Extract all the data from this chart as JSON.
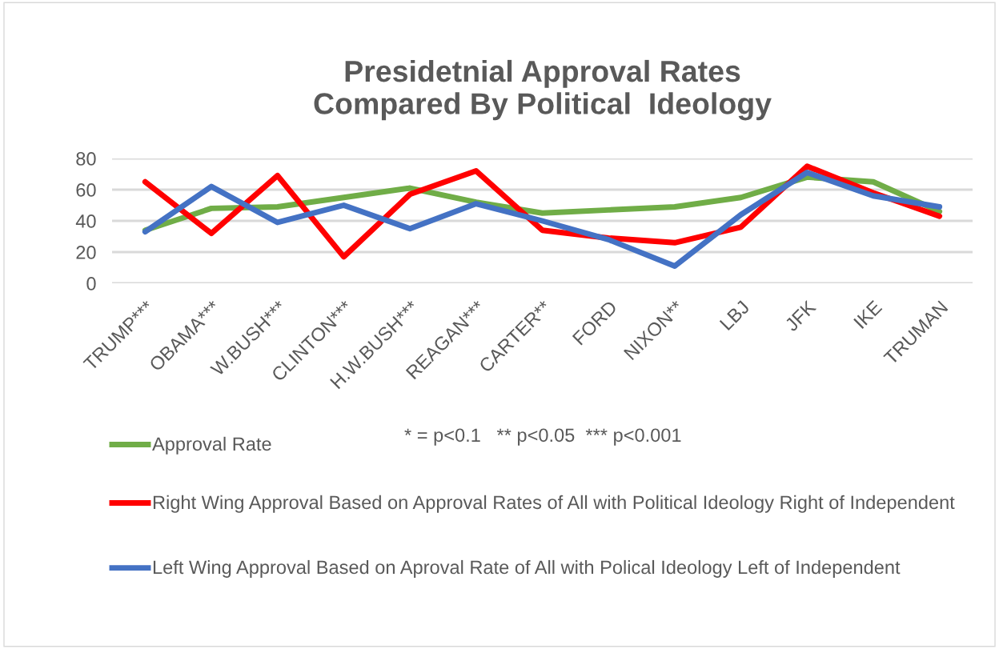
{
  "chart_data": {
    "type": "line",
    "title": "Presidetnial Approval Rates\nCompared By Political  Ideology",
    "categories": [
      "TRUMP***",
      "OBAMA***",
      "W.BUSH***",
      "CLINTON***",
      "H.W.BUSH***",
      "REAGAN***",
      "CARTER**",
      "FORD",
      "NIXON**",
      "LBJ",
      "JFK",
      "IKE",
      "TRUMAN"
    ],
    "series": [
      {
        "name": "Approval Rate",
        "color": "#70ad47",
        "values": [
          34,
          48,
          49,
          55,
          61,
          52,
          45,
          47,
          49,
          55,
          68,
          65,
          46
        ]
      },
      {
        "name": "Right Wing Approval Based on Approval Rates of All with Political Ideology Right of Independent",
        "color": "#ff0000",
        "values": [
          65,
          32,
          69,
          17,
          57,
          72,
          34,
          29,
          26,
          36,
          75,
          58,
          43
        ]
      },
      {
        "name": "Left Wing Approval Based on Aproval Rate of All with Polical Ideology Left of Independent",
        "color": "#4472c4",
        "values": [
          33,
          62,
          39,
          50,
          35,
          51,
          40,
          28,
          11,
          44,
          71,
          56,
          49
        ]
      }
    ],
    "annotations": [
      "* = p<0.1   ** p<0.05  *** p<0.001"
    ],
    "ylim": [
      0,
      80
    ],
    "yticks": [
      0,
      20,
      40,
      60,
      80
    ],
    "grid": "y",
    "legend": "bottom",
    "marker": "none",
    "line_style": "solid"
  }
}
